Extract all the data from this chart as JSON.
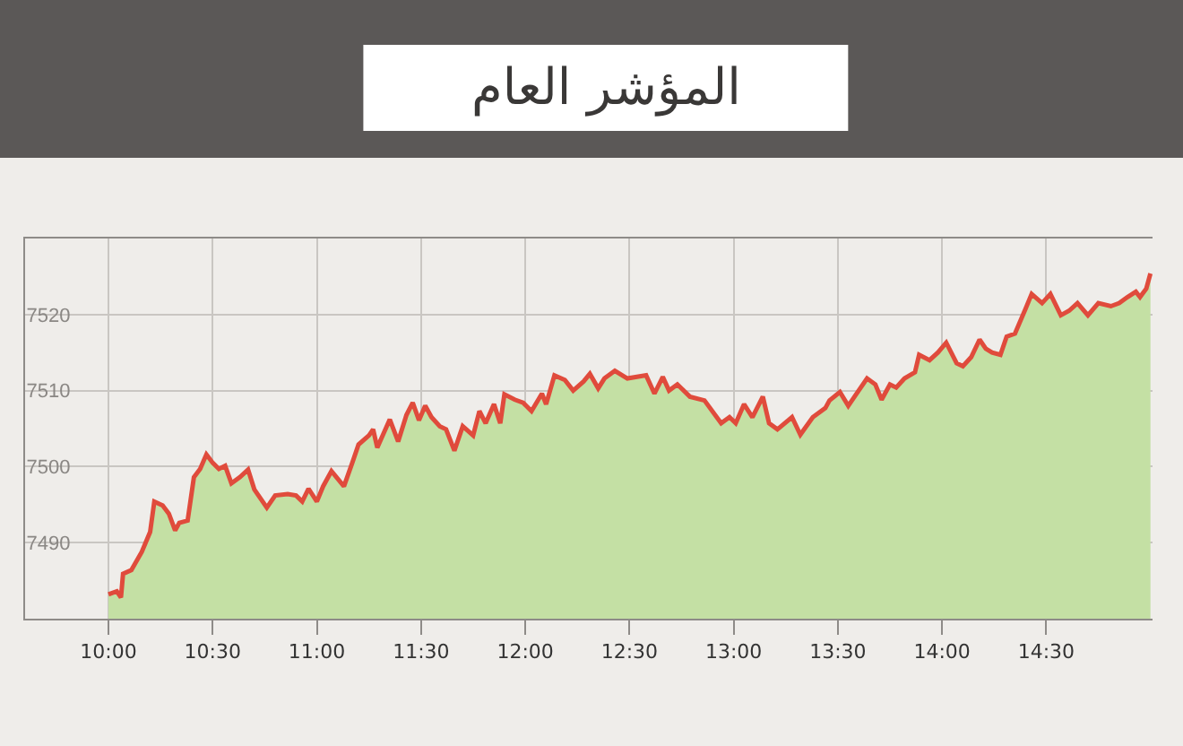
{
  "chart_data": {
    "type": "area",
    "title": "المؤشر العام",
    "x": [
      10.0,
      10.04,
      10.06,
      10.07,
      10.11,
      10.16,
      10.2,
      10.22,
      10.26,
      10.29,
      10.32,
      10.34,
      10.38,
      10.41,
      10.44,
      10.47,
      10.5,
      10.53,
      10.56,
      10.59,
      10.63,
      10.67,
      10.7,
      10.76,
      10.8,
      10.86,
      10.9,
      10.93,
      10.96,
      11.0,
      11.03,
      11.07,
      11.13,
      11.17,
      11.2,
      11.25,
      11.27,
      11.29,
      11.35,
      11.39,
      11.43,
      11.46,
      11.49,
      11.52,
      11.55,
      11.59,
      11.62,
      11.66,
      11.7,
      11.75,
      11.78,
      11.81,
      11.85,
      11.88,
      11.9,
      11.95,
      11.99,
      12.03,
      12.08,
      12.1,
      12.14,
      12.19,
      12.23,
      12.28,
      12.31,
      12.35,
      12.38,
      12.43,
      12.49,
      12.58,
      12.62,
      12.66,
      12.69,
      12.73,
      12.79,
      12.86,
      12.94,
      12.98,
      13.01,
      13.05,
      13.09,
      13.14,
      13.17,
      13.21,
      13.28,
      13.32,
      13.38,
      13.44,
      13.46,
      13.51,
      13.55,
      13.58,
      13.64,
      13.68,
      13.71,
      13.75,
      13.78,
      13.82,
      13.87,
      13.89,
      13.94,
      13.98,
      14.02,
      14.07,
      14.1,
      14.14,
      14.18,
      14.21,
      14.24,
      14.28,
      14.31,
      14.35,
      14.4,
      14.43,
      14.48,
      14.52,
      14.57,
      14.61,
      14.65,
      14.7,
      14.75,
      14.81,
      14.85,
      14.89,
      14.93,
      14.95,
      14.98,
      15.0
    ],
    "series": [
      {
        "color": "#c4e0a4",
        "values": [
          7483.2,
          7483.6,
          7482.8,
          7485.9,
          7486.4,
          7488.8,
          7491.4,
          7495.4,
          7494.9,
          7493.8,
          7491.6,
          7492.6,
          7492.9,
          7498.6,
          7499.7,
          7501.6,
          7500.5,
          7499.7,
          7500.1,
          7497.8,
          7498.6,
          7499.6,
          7497.0,
          7494.6,
          7496.2,
          7496.4,
          7496.2,
          7495.4,
          7497.1,
          7495.4,
          7497.4,
          7499.4,
          7497.4,
          7500.5,
          7502.9,
          7504.1,
          7504.9,
          7502.5,
          7506.2,
          7503.3,
          7506.8,
          7508.4,
          7506.1,
          7508.0,
          7506.5,
          7505.3,
          7504.9,
          7502.1,
          7505.3,
          7504.1,
          7507.3,
          7505.7,
          7508.2,
          7505.7,
          7509.5,
          7508.8,
          7508.4,
          7507.3,
          7509.6,
          7508.2,
          7512.0,
          7511.4,
          7510.0,
          7511.2,
          7512.2,
          7510.3,
          7511.6,
          7512.6,
          7511.6,
          7512.0,
          7509.6,
          7511.8,
          7510.0,
          7510.8,
          7509.2,
          7508.7,
          7505.7,
          7506.5,
          7505.7,
          7508.2,
          7506.5,
          7509.2,
          7505.7,
          7504.9,
          7506.5,
          7504.2,
          7506.5,
          7507.7,
          7508.7,
          7509.8,
          7508.0,
          7509.2,
          7511.6,
          7510.8,
          7508.8,
          7510.8,
          7510.4,
          7511.6,
          7512.4,
          7514.7,
          7514.0,
          7515.0,
          7516.3,
          7513.6,
          7513.2,
          7514.4,
          7516.7,
          7515.5,
          7515.0,
          7514.7,
          7517.1,
          7517.5,
          7520.7,
          7522.7,
          7521.5,
          7522.7,
          7519.9,
          7520.5,
          7521.5,
          7519.9,
          7521.5,
          7521.1,
          7521.5,
          7522.3,
          7523.0,
          7522.3,
          7523.4,
          7525.4
        ]
      },
      {
        "type": "line",
        "color": "#e04b3c",
        "values": [
          7483.2,
          7483.6,
          7482.8,
          7485.9,
          7486.4,
          7488.8,
          7491.4,
          7495.4,
          7494.9,
          7493.8,
          7491.6,
          7492.6,
          7492.9,
          7498.6,
          7499.7,
          7501.6,
          7500.5,
          7499.7,
          7500.1,
          7497.8,
          7498.6,
          7499.6,
          7497.0,
          7494.6,
          7496.2,
          7496.4,
          7496.2,
          7495.4,
          7497.1,
          7495.4,
          7497.4,
          7499.4,
          7497.4,
          7500.5,
          7502.9,
          7504.1,
          7504.9,
          7502.5,
          7506.2,
          7503.3,
          7506.8,
          7508.4,
          7506.1,
          7508.0,
          7506.5,
          7505.3,
          7504.9,
          7502.1,
          7505.3,
          7504.1,
          7507.3,
          7505.7,
          7508.2,
          7505.7,
          7509.5,
          7508.8,
          7508.4,
          7507.3,
          7509.6,
          7508.2,
          7512.0,
          7511.4,
          7510.0,
          7511.2,
          7512.2,
          7510.3,
          7511.6,
          7512.6,
          7511.6,
          7512.0,
          7509.6,
          7511.8,
          7510.0,
          7510.8,
          7509.2,
          7508.7,
          7505.7,
          7506.5,
          7505.7,
          7508.2,
          7506.5,
          7509.2,
          7505.7,
          7504.9,
          7506.5,
          7504.2,
          7506.5,
          7507.7,
          7508.7,
          7509.8,
          7508.0,
          7509.2,
          7511.6,
          7510.8,
          7508.8,
          7510.8,
          7510.4,
          7511.6,
          7512.4,
          7514.7,
          7514.0,
          7515.0,
          7516.3,
          7513.6,
          7513.2,
          7514.4,
          7516.7,
          7515.5,
          7515.0,
          7514.7,
          7517.1,
          7517.5,
          7520.7,
          7522.7,
          7521.5,
          7522.7,
          7519.9,
          7520.5,
          7521.5,
          7519.9,
          7521.5,
          7521.1,
          7521.5,
          7522.3,
          7523.0,
          7522.3,
          7523.4,
          7525.4
        ]
      }
    ],
    "xlim": [
      9.6,
      15.01
    ],
    "xticks": [
      {
        "value": 10,
        "label": "10:00"
      },
      {
        "value": 10.5,
        "label": "10:30"
      },
      {
        "value": 11,
        "label": "11:00"
      },
      {
        "value": 11.5,
        "label": "11:30"
      },
      {
        "value": 12,
        "label": "12:00"
      },
      {
        "value": 12.5,
        "label": "12:30"
      },
      {
        "value": 13,
        "label": "13:00"
      },
      {
        "value": 13.5,
        "label": "13:30"
      },
      {
        "value": 14,
        "label": "14:00"
      },
      {
        "value": 14.5,
        "label": "14:30"
      }
    ],
    "ylim": [
      7480,
      7530
    ],
    "yticks": [
      7490,
      7500,
      7510,
      7520
    ],
    "grid": true
  }
}
